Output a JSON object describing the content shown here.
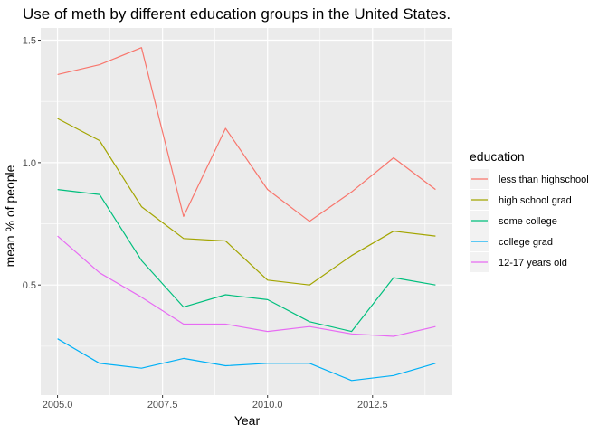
{
  "chart_data": {
    "type": "line",
    "title": "Use of meth by different education groups in the United States.",
    "xlabel": "Year",
    "ylabel": "mean % of people",
    "xlim": [
      2004.6,
      2014.4
    ],
    "ylim": [
      0.05,
      1.55
    ],
    "x_ticks": [
      2005,
      2007.5,
      2010,
      2012.5
    ],
    "x_tick_labels": [
      "2005.0",
      "2007.5",
      "2010.0",
      "2012.5"
    ],
    "x_minor_ticks": [
      2006.25,
      2008.75,
      2011.25,
      2013.75
    ],
    "y_ticks": [
      0.5,
      1.0,
      1.5
    ],
    "y_tick_labels": [
      "0.5",
      "1.0",
      "1.5"
    ],
    "y_minor_ticks": [
      0.25,
      0.75,
      1.25
    ],
    "grid": true,
    "legend_title": "education",
    "legend_position": "right",
    "x": [
      2005,
      2006,
      2007,
      2008,
      2009,
      2010,
      2011,
      2012,
      2013,
      2014
    ],
    "series": [
      {
        "name": "less than highschool",
        "color": "#F8766D",
        "values": [
          1.36,
          1.4,
          1.47,
          0.78,
          1.14,
          0.89,
          0.76,
          0.88,
          1.02,
          0.89
        ]
      },
      {
        "name": "high school grad",
        "color": "#A3A500",
        "values": [
          1.18,
          1.09,
          0.82,
          0.69,
          0.68,
          0.52,
          0.5,
          0.62,
          0.72,
          0.7
        ]
      },
      {
        "name": "some college",
        "color": "#00BF7D",
        "values": [
          0.89,
          0.87,
          0.6,
          0.41,
          0.46,
          0.44,
          0.35,
          0.31,
          0.53,
          0.5
        ]
      },
      {
        "name": "college grad",
        "color": "#00B0F6",
        "values": [
          0.28,
          0.18,
          0.16,
          0.2,
          0.17,
          0.18,
          0.18,
          0.11,
          0.13,
          0.18
        ]
      },
      {
        "name": "12-17 years old",
        "color": "#E76BF3",
        "values": [
          0.7,
          0.55,
          0.45,
          0.34,
          0.34,
          0.31,
          0.33,
          0.3,
          0.29,
          0.33
        ]
      }
    ]
  }
}
